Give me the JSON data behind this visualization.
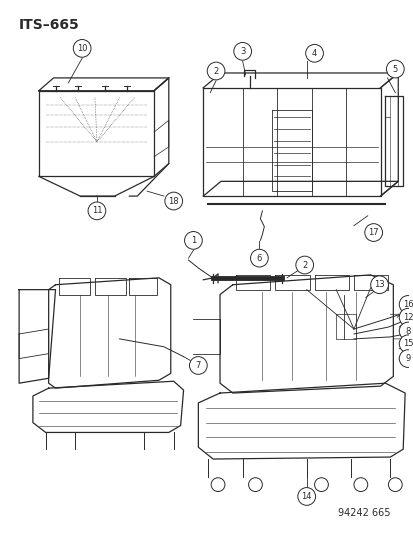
{
  "title": "ITS–665",
  "footer": "94242 665",
  "bg_color": "#ffffff",
  "title_fontsize": 10,
  "footer_fontsize": 7,
  "line_color": "#2a2a2a",
  "lw": 0.9
}
